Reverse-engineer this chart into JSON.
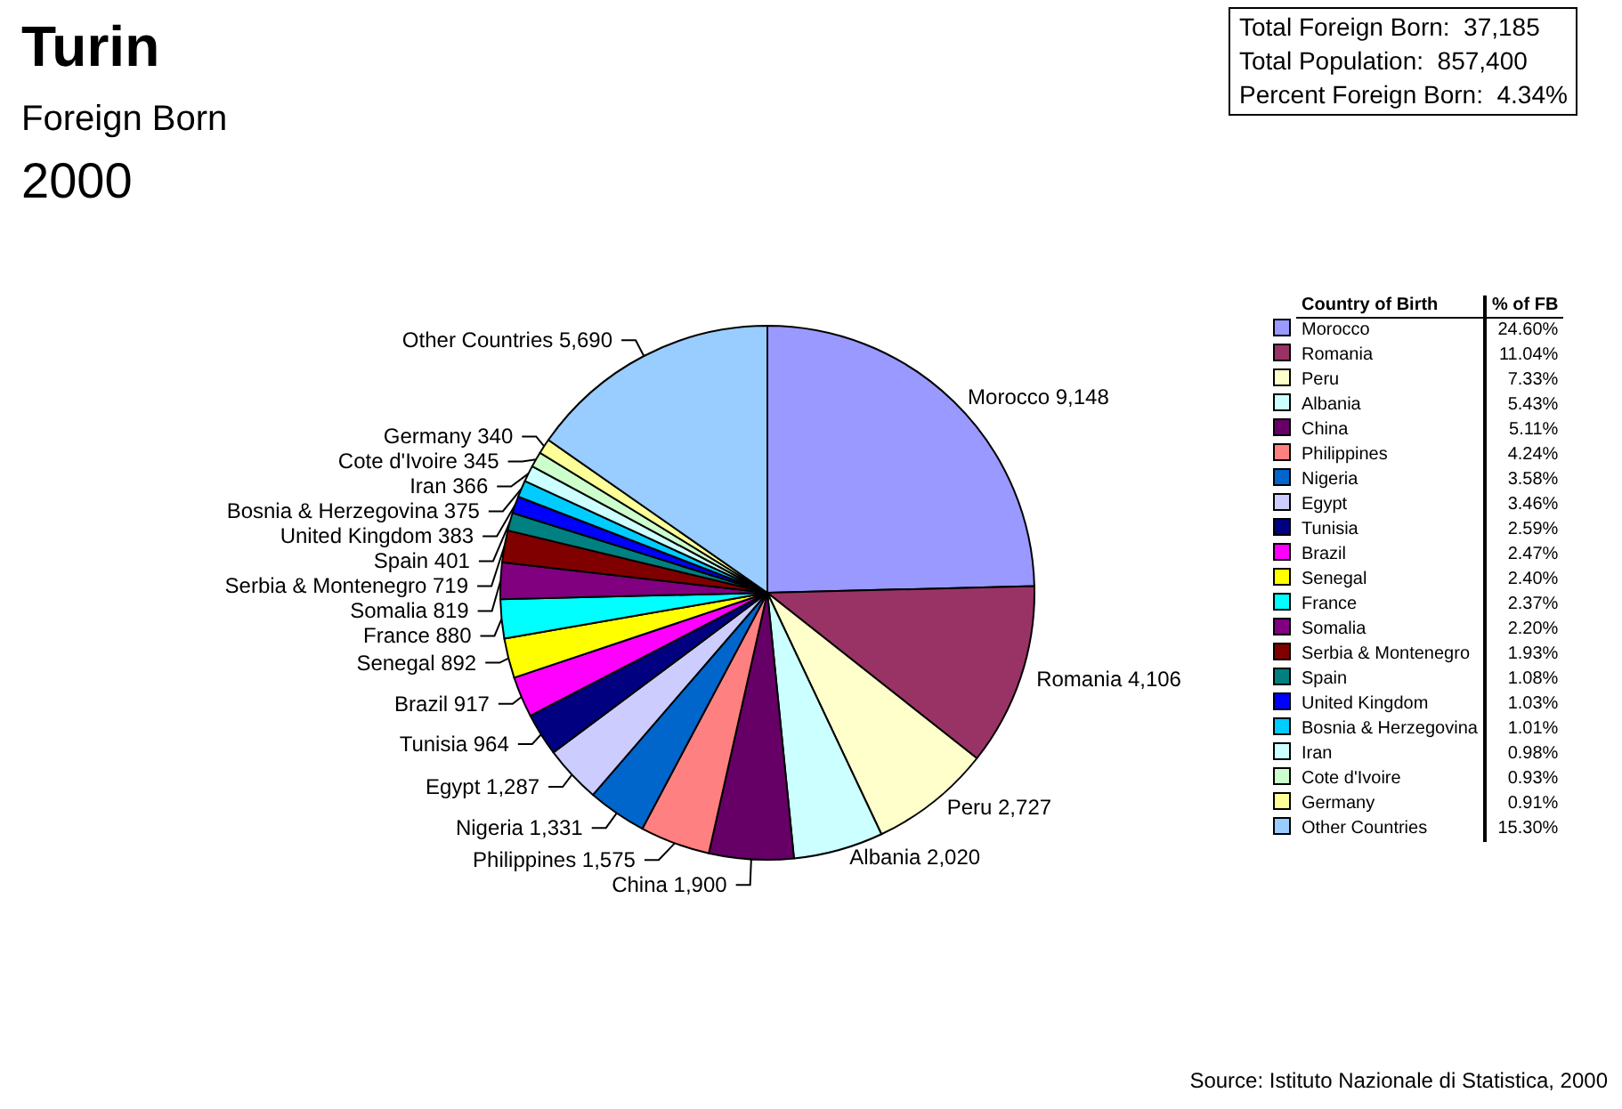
{
  "chart_data": [
    {
      "type": "pie",
      "title": "Turin",
      "subtitle": "Foreign Born",
      "legend": false,
      "value_labels": [
        "9,148",
        "4,106",
        "2,727",
        "2,020",
        "1,900",
        "1,575",
        "1,331",
        "1,287",
        "964",
        "917",
        "892",
        "880",
        "819",
        "719",
        "401",
        "383",
        "375",
        "366",
        "345",
        "340",
        "5,690"
      ],
      "annotations": [
        "2000",
        "Total Foreign Born:  37,185",
        "Total Population:  857,400",
        "Percent Foreign Born:  4.34%",
        "Source: Istituto Nazionale di Statistica, 2000"
      ],
      "categories": [
        "Morocco",
        "Romania",
        "Peru",
        "Albania",
        "China",
        "Philippines",
        "Nigeria",
        "Egypt",
        "Tunisia",
        "Brazil",
        "Senegal",
        "France",
        "Somalia",
        "Serbia & Montenegro",
        "Spain",
        "United Kingdom",
        "Bosnia & Herzegovina",
        "Iran",
        "Cote d'Ivoire",
        "Germany",
        "Other Countries"
      ],
      "values": [
        9148,
        4106,
        2727,
        2020,
        1900,
        1575,
        1331,
        1287,
        964,
        917,
        892,
        880,
        819,
        719,
        401,
        383,
        375,
        366,
        345,
        340,
        5690
      ],
      "colors": [
        "#9999ff",
        "#993366",
        "#ffffcc",
        "#ccffff",
        "#660066",
        "#ff8080",
        "#0066cc",
        "#ccccff",
        "#000080",
        "#ff00ff",
        "#ffff00",
        "#00ffff",
        "#800080",
        "#800000",
        "#008080",
        "#0000ff",
        "#00ccff",
        "#ccffff",
        "#ccffcc",
        "#ffff99",
        "#99ccff"
      ]
    },
    {
      "type": "other",
      "xlabel": "Country of Birth",
      "ylabel": "% of FB",
      "categories": [
        "Morocco",
        "Romania",
        "Peru",
        "Albania",
        "China",
        "Philippines",
        "Nigeria",
        "Egypt",
        "Tunisia",
        "Brazil",
        "Senegal",
        "France",
        "Somalia",
        "Serbia & Montenegro",
        "Spain",
        "United Kingdom",
        "Bosnia & Herzegovina",
        "Iran",
        "Cote d'Ivoire",
        "Germany",
        "Other Countries"
      ],
      "values": [
        24.6,
        11.04,
        7.33,
        5.43,
        5.11,
        4.24,
        3.58,
        3.46,
        2.59,
        2.47,
        2.4,
        2.37,
        2.2,
        1.93,
        1.08,
        1.03,
        1.01,
        0.98,
        0.93,
        0.91,
        15.3
      ],
      "value_labels": [
        "24.60%",
        "11.04%",
        "7.33%",
        "5.43%",
        "5.11%",
        "4.24%",
        "3.58%",
        "3.46%",
        "2.59%",
        "2.47%",
        "2.40%",
        "2.37%",
        "2.20%",
        "1.93%",
        "1.08%",
        "1.03%",
        "1.01%",
        "0.98%",
        "0.93%",
        "0.91%",
        "15.30%"
      ],
      "colors": [
        "#9999ff",
        "#993366",
        "#ffffcc",
        "#ccffff",
        "#660066",
        "#ff8080",
        "#0066cc",
        "#ccccff",
        "#000080",
        "#ff00ff",
        "#ffff00",
        "#00ffff",
        "#800080",
        "#800000",
        "#008080",
        "#0000ff",
        "#00ccff",
        "#ccffff",
        "#ccffcc",
        "#ffff99",
        "#99ccff"
      ]
    }
  ]
}
